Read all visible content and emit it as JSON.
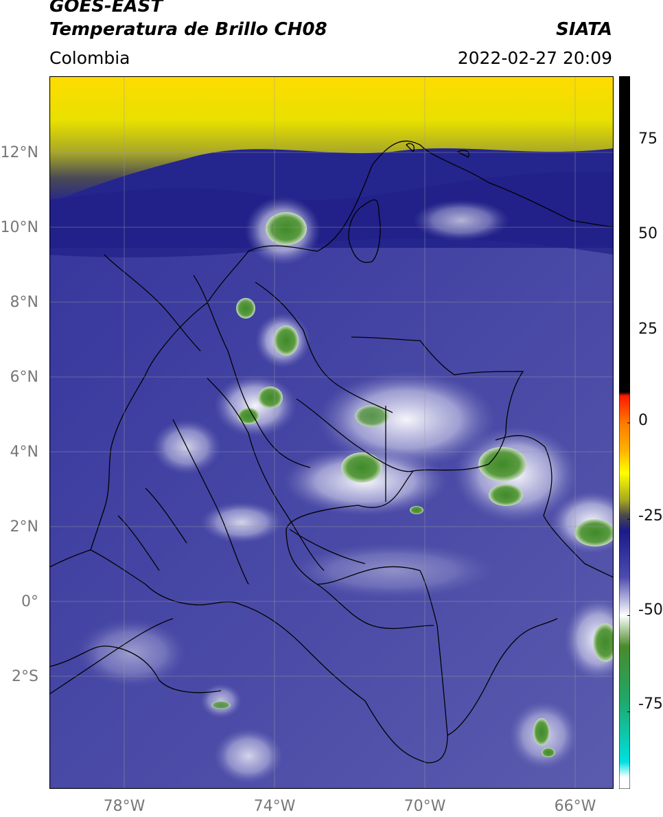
{
  "header": {
    "title_line1": "GOES-EAST",
    "title_line2": "Temperatura de Brillo CH08",
    "region": "Colombia",
    "source": "SIATA",
    "datetime": "2022-02-27 20:09"
  },
  "map": {
    "lat_labels": [
      "12°N",
      "10°N",
      "8°N",
      "6°N",
      "4°N",
      "2°N",
      "0°",
      "2°S"
    ],
    "lon_labels": [
      "78°W",
      "74°W",
      "70°W",
      "66°W"
    ],
    "lat_range": [
      -5,
      14
    ],
    "lon_range": [
      -80,
      -65
    ]
  },
  "colorbar": {
    "ticks": [
      "75",
      "50",
      "25",
      "0",
      "-25",
      "-50",
      "-75"
    ],
    "range": [
      -95,
      90
    ],
    "stops": [
      {
        "value": 90,
        "color": "#000000"
      },
      {
        "value": 8,
        "color": "#000000"
      },
      {
        "value": 7,
        "color": "#ff1a00"
      },
      {
        "value": 0,
        "color": "#ff7a00"
      },
      {
        "value": -7,
        "color": "#ffb000"
      },
      {
        "value": -13,
        "color": "#ffff00"
      },
      {
        "value": -20,
        "color": "#a8a820"
      },
      {
        "value": -24,
        "color": "#4a4a4a"
      },
      {
        "value": -28,
        "color": "#1a1a8a"
      },
      {
        "value": -40,
        "color": "#4b4bb0"
      },
      {
        "value": -50,
        "color": "#ffffff"
      },
      {
        "value": -58,
        "color": "#4a8a2a"
      },
      {
        "value": -72,
        "color": "#1fa86a"
      },
      {
        "value": -88,
        "color": "#00e0e0"
      },
      {
        "value": -92,
        "color": "#ffffff"
      }
    ]
  },
  "colors": {
    "ocean_base": "#25258e",
    "land_base": "#5a5aa8",
    "warm_band": "#e6e000",
    "cold_cloud": "#ffffff",
    "very_cold": "#4a8a30"
  }
}
